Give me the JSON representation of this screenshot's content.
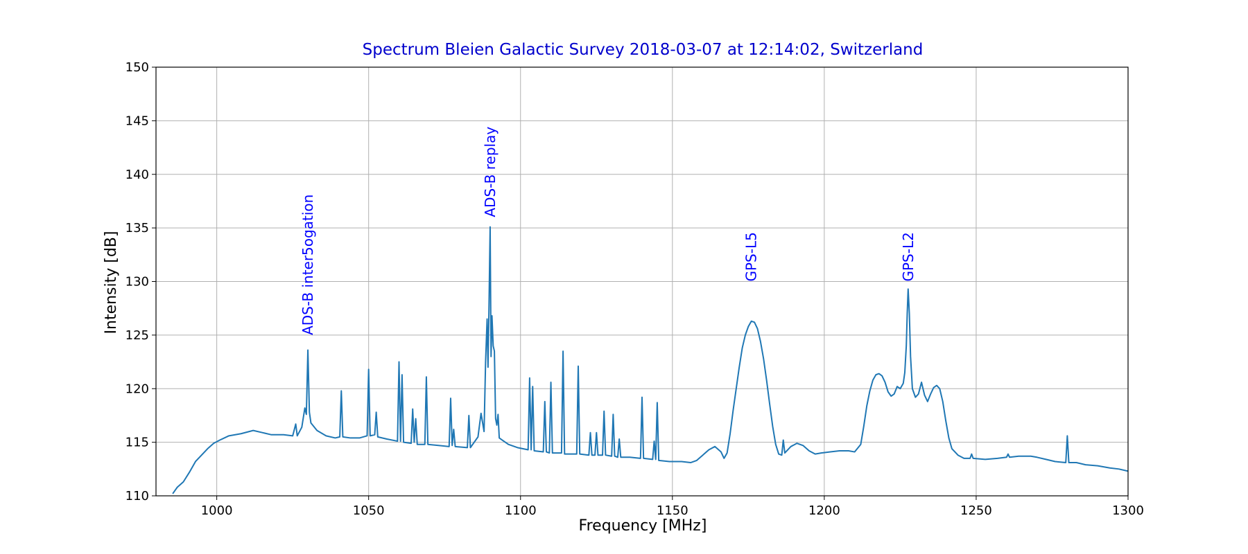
{
  "chart_data": {
    "type": "line",
    "title": "Spectrum Bleien Galactic Survey 2018-03-07 at 12:14:02, Switzerland",
    "xlabel": "Frequency [MHz]",
    "ylabel": "Intensity [dB]",
    "xlim": [
      980,
      1300
    ],
    "ylim": [
      110,
      150
    ],
    "xticks": [
      1000,
      1050,
      1100,
      1150,
      1200,
      1250,
      1300
    ],
    "yticks": [
      110,
      115,
      120,
      125,
      130,
      135,
      140,
      145,
      150
    ],
    "grid": true,
    "colors": {
      "line": "#1f77b4",
      "annotation": "#0000ff",
      "title": "#0000cc"
    },
    "annotations": [
      {
        "text": "ADS-B inter5ogation",
        "x": 1030,
        "y": 125,
        "rotation": 90
      },
      {
        "text": "ADS-B replay",
        "x": 1090,
        "y": 136,
        "rotation": 90
      },
      {
        "text": "GPS-L5",
        "x": 1176,
        "y": 130,
        "rotation": 90
      },
      {
        "text": "GPS-L2",
        "x": 1227.6,
        "y": 130,
        "rotation": 90
      }
    ],
    "series": [
      {
        "points": [
          [
            985.5,
            110.2
          ],
          [
            987,
            110.8
          ],
          [
            989,
            111.3
          ],
          [
            991,
            112.2
          ],
          [
            993,
            113.2
          ],
          [
            995,
            113.8
          ],
          [
            997,
            114.4
          ],
          [
            999,
            114.9
          ],
          [
            1001,
            115.2
          ],
          [
            1004,
            115.6
          ],
          [
            1008,
            115.8
          ],
          [
            1012,
            116.1
          ],
          [
            1015,
            115.9
          ],
          [
            1018,
            115.7
          ],
          [
            1022,
            115.7
          ],
          [
            1025,
            115.6
          ],
          [
            1026,
            116.7
          ],
          [
            1026.5,
            115.6
          ],
          [
            1028,
            116.4
          ],
          [
            1029,
            118.2
          ],
          [
            1029.5,
            117.6
          ],
          [
            1030,
            123.6
          ],
          [
            1030.5,
            117.8
          ],
          [
            1031,
            116.8
          ],
          [
            1033,
            116.1
          ],
          [
            1036,
            115.6
          ],
          [
            1039,
            115.4
          ],
          [
            1040.5,
            115.5
          ],
          [
            1041,
            119.8
          ],
          [
            1041.5,
            115.5
          ],
          [
            1044,
            115.4
          ],
          [
            1047,
            115.4
          ],
          [
            1049.5,
            115.6
          ],
          [
            1050,
            121.8
          ],
          [
            1050.5,
            115.6
          ],
          [
            1052,
            115.7
          ],
          [
            1052.5,
            117.8
          ],
          [
            1053,
            115.5
          ],
          [
            1056,
            115.3
          ],
          [
            1059.5,
            115.1
          ],
          [
            1060,
            122.5
          ],
          [
            1060.5,
            115.1
          ],
          [
            1061,
            121.3
          ],
          [
            1061.5,
            115
          ],
          [
            1064,
            114.9
          ],
          [
            1064.5,
            118.1
          ],
          [
            1065,
            115
          ],
          [
            1065.5,
            117.2
          ],
          [
            1066,
            114.8
          ],
          [
            1068.5,
            114.8
          ],
          [
            1069,
            121.1
          ],
          [
            1069.5,
            114.8
          ],
          [
            1073,
            114.7
          ],
          [
            1076.5,
            114.6
          ],
          [
            1077,
            119.1
          ],
          [
            1077.5,
            114.7
          ],
          [
            1078,
            116.2
          ],
          [
            1078.5,
            114.6
          ],
          [
            1082.5,
            114.5
          ],
          [
            1083,
            117.5
          ],
          [
            1083.5,
            114.5
          ],
          [
            1086,
            115.5
          ],
          [
            1087,
            117.7
          ],
          [
            1088,
            116
          ],
          [
            1088.5,
            122.5
          ],
          [
            1089,
            126.5
          ],
          [
            1089.3,
            122
          ],
          [
            1089.6,
            127.2
          ],
          [
            1090,
            135.1
          ],
          [
            1090.3,
            123
          ],
          [
            1090.6,
            126.8
          ],
          [
            1091,
            124
          ],
          [
            1091.4,
            123.5
          ],
          [
            1091.8,
            117.2
          ],
          [
            1092.2,
            116.6
          ],
          [
            1092.6,
            117.6
          ],
          [
            1093,
            115.4
          ],
          [
            1094,
            115.2
          ],
          [
            1096,
            114.8
          ],
          [
            1099,
            114.5
          ],
          [
            1102.5,
            114.3
          ],
          [
            1103,
            121
          ],
          [
            1103.5,
            114.3
          ],
          [
            1104,
            120.2
          ],
          [
            1104.5,
            114.2
          ],
          [
            1107.5,
            114.1
          ],
          [
            1108,
            118.8
          ],
          [
            1108.5,
            114.1
          ],
          [
            1109.5,
            114
          ],
          [
            1110,
            120.6
          ],
          [
            1110.5,
            114
          ],
          [
            1113.5,
            114
          ],
          [
            1114,
            123.5
          ],
          [
            1114.5,
            113.9
          ],
          [
            1118.5,
            113.9
          ],
          [
            1119,
            122.1
          ],
          [
            1119.5,
            113.9
          ],
          [
            1122.5,
            113.8
          ],
          [
            1123,
            115.9
          ],
          [
            1123.5,
            113.8
          ],
          [
            1124.5,
            113.8
          ],
          [
            1125,
            115.9
          ],
          [
            1125.5,
            113.8
          ],
          [
            1127,
            113.8
          ],
          [
            1127.5,
            117.9
          ],
          [
            1128,
            113.8
          ],
          [
            1130,
            113.7
          ],
          [
            1130.5,
            117.6
          ],
          [
            1131,
            113.7
          ],
          [
            1132,
            113.6
          ],
          [
            1132.5,
            115.3
          ],
          [
            1133,
            113.6
          ],
          [
            1136,
            113.6
          ],
          [
            1139.5,
            113.5
          ],
          [
            1140,
            119.2
          ],
          [
            1140.5,
            113.5
          ],
          [
            1143.5,
            113.4
          ],
          [
            1144,
            115.1
          ],
          [
            1144.5,
            113.4
          ],
          [
            1145,
            118.7
          ],
          [
            1145.5,
            113.3
          ],
          [
            1149,
            113.2
          ],
          [
            1153,
            113.2
          ],
          [
            1156,
            113.1
          ],
          [
            1158,
            113.3
          ],
          [
            1160,
            113.8
          ],
          [
            1162,
            114.3
          ],
          [
            1164,
            114.6
          ],
          [
            1166,
            114.1
          ],
          [
            1167,
            113.5
          ],
          [
            1168,
            114
          ],
          [
            1169,
            115.8
          ],
          [
            1170,
            118
          ],
          [
            1171,
            120
          ],
          [
            1172,
            122
          ],
          [
            1173,
            123.8
          ],
          [
            1174,
            125
          ],
          [
            1175,
            125.8
          ],
          [
            1176,
            126.3
          ],
          [
            1177,
            126.2
          ],
          [
            1178,
            125.6
          ],
          [
            1179,
            124.4
          ],
          [
            1180,
            122.8
          ],
          [
            1181,
            120.8
          ],
          [
            1182,
            118.6
          ],
          [
            1183,
            116.5
          ],
          [
            1184,
            114.8
          ],
          [
            1185,
            113.9
          ],
          [
            1186,
            113.8
          ],
          [
            1186.5,
            115.2
          ],
          [
            1187,
            114
          ],
          [
            1189,
            114.6
          ],
          [
            1191,
            114.9
          ],
          [
            1193,
            114.7
          ],
          [
            1195,
            114.2
          ],
          [
            1197,
            113.9
          ],
          [
            1199,
            114
          ],
          [
            1202,
            114.1
          ],
          [
            1205,
            114.2
          ],
          [
            1208,
            114.2
          ],
          [
            1210,
            114.1
          ],
          [
            1212,
            114.8
          ],
          [
            1213,
            116.5
          ],
          [
            1214,
            118.4
          ],
          [
            1215,
            119.8
          ],
          [
            1216,
            120.8
          ],
          [
            1217,
            121.3
          ],
          [
            1218,
            121.4
          ],
          [
            1219,
            121.2
          ],
          [
            1220,
            120.6
          ],
          [
            1221,
            119.7
          ],
          [
            1222,
            119.3
          ],
          [
            1223,
            119.5
          ],
          [
            1224,
            120.2
          ],
          [
            1225,
            120
          ],
          [
            1226,
            120.5
          ],
          [
            1226.5,
            121.5
          ],
          [
            1227,
            124
          ],
          [
            1227.3,
            127
          ],
          [
            1227.6,
            129.3
          ],
          [
            1228,
            127
          ],
          [
            1228.4,
            123
          ],
          [
            1229,
            120
          ],
          [
            1230,
            119.2
          ],
          [
            1231,
            119.5
          ],
          [
            1232,
            120.6
          ],
          [
            1233,
            119.4
          ],
          [
            1234,
            118.8
          ],
          [
            1235,
            119.5
          ],
          [
            1236,
            120.1
          ],
          [
            1237,
            120.3
          ],
          [
            1238,
            120
          ],
          [
            1239,
            118.8
          ],
          [
            1240,
            117
          ],
          [
            1241,
            115.4
          ],
          [
            1242,
            114.4
          ],
          [
            1244,
            113.8
          ],
          [
            1246,
            113.5
          ],
          [
            1248,
            113.5
          ],
          [
            1248.5,
            113.9
          ],
          [
            1249,
            113.5
          ],
          [
            1253,
            113.4
          ],
          [
            1257,
            113.5
          ],
          [
            1260,
            113.6
          ],
          [
            1260.5,
            113.9
          ],
          [
            1261,
            113.6
          ],
          [
            1264,
            113.7
          ],
          [
            1268,
            113.7
          ],
          [
            1270,
            113.6
          ],
          [
            1273,
            113.4
          ],
          [
            1276,
            113.2
          ],
          [
            1279.5,
            113.1
          ],
          [
            1280,
            115.6
          ],
          [
            1280.5,
            113.1
          ],
          [
            1283,
            113.1
          ],
          [
            1286,
            112.9
          ],
          [
            1290,
            112.8
          ],
          [
            1294,
            112.6
          ],
          [
            1297,
            112.5
          ],
          [
            1300,
            112.3
          ]
        ]
      }
    ]
  }
}
